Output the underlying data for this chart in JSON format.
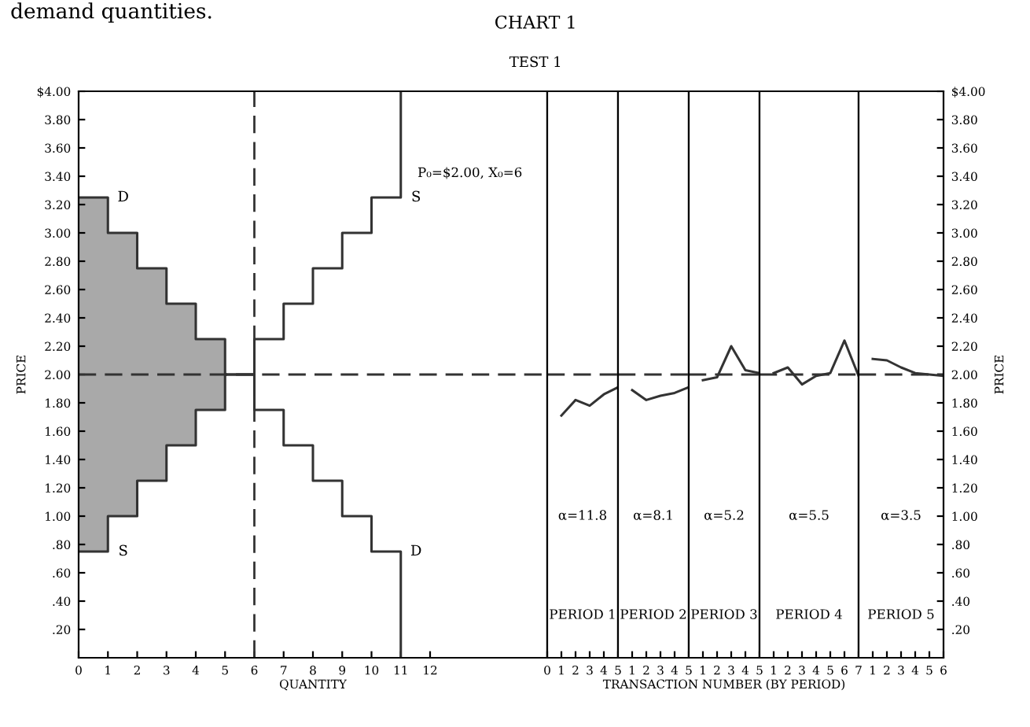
{
  "chart_data": [
    {
      "type": "step",
      "title": "CHART 1",
      "subtitle": "TEST 1",
      "xlabel": "QUANTITY",
      "ylabel": "PRICE",
      "xlim": [
        0,
        16
      ],
      "ylim": [
        0,
        4.0
      ],
      "xticks": [
        0,
        1,
        2,
        3,
        4,
        5,
        6,
        7,
        8,
        9,
        10,
        11,
        12
      ],
      "yticks": [
        {
          "value": 4.0,
          "label": "$4.00"
        },
        {
          "value": 3.8,
          "label": "3.80"
        },
        {
          "value": 3.6,
          "label": "3.60"
        },
        {
          "value": 3.4,
          "label": "3.40"
        },
        {
          "value": 3.2,
          "label": "3.20"
        },
        {
          "value": 3.0,
          "label": "3.00"
        },
        {
          "value": 2.8,
          "label": "2.80"
        },
        {
          "value": 2.6,
          "label": "2.60"
        },
        {
          "value": 2.4,
          "label": "2.40"
        },
        {
          "value": 2.2,
          "label": "2.20"
        },
        {
          "value": 2.0,
          "label": "2.00"
        },
        {
          "value": 1.8,
          "label": "1.80"
        },
        {
          "value": 1.6,
          "label": "1.60"
        },
        {
          "value": 1.4,
          "label": "1.40"
        },
        {
          "value": 1.2,
          "label": "1.20"
        },
        {
          "value": 1.0,
          "label": "1.00"
        },
        {
          "value": 0.8,
          "label": ".80"
        },
        {
          "value": 0.6,
          "label": ".60"
        },
        {
          "value": 0.4,
          "label": ".40"
        },
        {
          "value": 0.2,
          "label": ".20"
        }
      ],
      "series": [
        {
          "type": "step",
          "name": "D",
          "color": "#333333",
          "x": [
            0,
            1,
            2,
            3,
            4,
            5,
            6,
            7,
            8,
            9,
            10,
            11,
            11
          ],
          "values": [
            3.25,
            3.0,
            2.75,
            2.5,
            2.25,
            2.0,
            1.75,
            1.5,
            1.25,
            1.0,
            0.75,
            0.75,
            0
          ],
          "upper": [
            3.25,
            3.0,
            2.75,
            2.5,
            2.25,
            2.0,
            null,
            null,
            null,
            null,
            null,
            null,
            null
          ],
          "lower": [
            0.75,
            1.0,
            1.25,
            1.5,
            1.75,
            2.0,
            null,
            null,
            null,
            null,
            null,
            null,
            null
          ]
        },
        {
          "type": "step",
          "name": "S",
          "color": "#333333",
          "x": [
            0,
            1,
            2,
            3,
            4,
            5,
            6,
            7,
            8,
            9,
            10,
            11,
            11
          ],
          "values": [
            0.75,
            1.0,
            1.25,
            1.5,
            1.75,
            2.0,
            2.25,
            2.5,
            2.75,
            3.0,
            3.25,
            3.25,
            4.0
          ]
        }
      ],
      "ref_lines": [
        {
          "axis": "y",
          "value": 2.0,
          "line_style": "dashed",
          "color": "#333333"
        },
        {
          "axis": "x",
          "value": 6,
          "line_style": "dashed",
          "color": "#333333"
        }
      ],
      "annotations": [
        "demand quantities.",
        "P₀=$2.00, X₀=6"
      ],
      "grid": false,
      "marker": "none",
      "line_style": "solid"
    },
    {
      "type": "line",
      "xlim": [
        0,
        5
      ],
      "ylim": [
        0,
        4.0
      ],
      "xticks": [
        0,
        1,
        2,
        3,
        4,
        5
      ],
      "series": [
        {
          "color": "#333333",
          "x": [
            1,
            2,
            3,
            4,
            5
          ],
          "values": [
            1.71,
            1.82,
            1.78,
            1.86,
            1.91
          ]
        }
      ],
      "ref_lines": [
        {
          "axis": "y",
          "value": 2.0,
          "line_style": "dashed",
          "color": "#333333"
        }
      ],
      "annotations": [
        "α=11.8",
        "PERIOD 1"
      ],
      "tick_labels": "x",
      "grid": false,
      "marker": "none",
      "line_style": "solid"
    },
    {
      "type": "line",
      "xlim": [
        0,
        5
      ],
      "ylim": [
        0,
        4.0
      ],
      "xticks": [
        1,
        2,
        3,
        4,
        5
      ],
      "series": [
        {
          "color": "#333333",
          "x": [
            1,
            2,
            3,
            4,
            5
          ],
          "values": [
            1.89,
            1.82,
            1.85,
            1.87,
            1.91
          ]
        }
      ],
      "ref_lines": [
        {
          "axis": "y",
          "value": 2.0,
          "line_style": "dashed",
          "color": "#333333"
        }
      ],
      "annotations": [
        "α=8.1",
        "PERIOD 2"
      ],
      "tick_labels": "x",
      "grid": false,
      "marker": "none",
      "line_style": "solid"
    },
    {
      "type": "line",
      "xlabel": "TRANSACTION NUMBER (BY PERIOD)",
      "xlim": [
        0,
        5
      ],
      "ylim": [
        0,
        4.0
      ],
      "xticks": [
        1,
        2,
        3,
        4,
        5
      ],
      "series": [
        {
          "color": "#333333",
          "x": [
            1,
            2,
            3,
            4,
            5
          ],
          "values": [
            1.96,
            1.98,
            2.2,
            2.03,
            2.01
          ]
        }
      ],
      "ref_lines": [
        {
          "axis": "y",
          "value": 2.0,
          "line_style": "dashed",
          "color": "#333333"
        }
      ],
      "annotations": [
        "α=5.2",
        "PERIOD 3"
      ],
      "tick_labels": "x",
      "grid": false,
      "marker": "none",
      "line_style": "solid"
    },
    {
      "type": "line",
      "xlim": [
        0,
        7
      ],
      "ylim": [
        0,
        4.0
      ],
      "xticks": [
        1,
        2,
        3,
        4,
        5,
        6,
        7
      ],
      "series": [
        {
          "color": "#333333",
          "x": [
            1,
            2,
            3,
            4,
            5,
            6,
            7
          ],
          "values": [
            2.01,
            2.05,
            1.93,
            1.99,
            2.01,
            2.24,
            1.99
          ]
        }
      ],
      "ref_lines": [
        {
          "axis": "y",
          "value": 2.0,
          "line_style": "dashed",
          "color": "#333333"
        }
      ],
      "annotations": [
        "α=5.5",
        "PERIOD 4"
      ],
      "tick_labels": "x",
      "grid": false,
      "marker": "none",
      "line_style": "solid"
    },
    {
      "type": "line",
      "ylabel": "PRICE",
      "xlim": [
        0,
        6
      ],
      "ylim": [
        0,
        4.0
      ],
      "xticks": [
        1,
        2,
        3,
        4,
        5,
        6
      ],
      "yticks": [
        {
          "value": 4.0,
          "label": "$4.00"
        },
        {
          "value": 3.8,
          "label": "3.80"
        },
        {
          "value": 3.6,
          "label": "3.60"
        },
        {
          "value": 3.4,
          "label": "3.40"
        },
        {
          "value": 3.2,
          "label": "3.20"
        },
        {
          "value": 3.0,
          "label": "3.00"
        },
        {
          "value": 2.8,
          "label": "2.80"
        },
        {
          "value": 2.6,
          "label": "2.60"
        },
        {
          "value": 2.4,
          "label": "2.40"
        },
        {
          "value": 2.2,
          "label": "2.20"
        },
        {
          "value": 2.0,
          "label": "2.00"
        },
        {
          "value": 1.8,
          "label": "1.80"
        },
        {
          "value": 1.6,
          "label": "1.60"
        },
        {
          "value": 1.4,
          "label": "1.40"
        },
        {
          "value": 1.2,
          "label": "1.20"
        },
        {
          "value": 1.0,
          "label": "1.00"
        },
        {
          "value": 0.8,
          "label": ".80"
        },
        {
          "value": 0.6,
          "label": ".60"
        },
        {
          "value": 0.4,
          "label": ".40"
        },
        {
          "value": 0.2,
          "label": ".20"
        }
      ],
      "series": [
        {
          "color": "#333333",
          "x": [
            1,
            2,
            3,
            4,
            5,
            6
          ],
          "values": [
            2.11,
            2.1,
            2.05,
            2.01,
            2.0,
            1.99
          ]
        }
      ],
      "ref_lines": [
        {
          "axis": "y",
          "value": 2.0,
          "line_style": "dashed",
          "color": "#333333"
        }
      ],
      "annotations": [
        "α=3.5",
        "PERIOD 5"
      ],
      "grid": false,
      "marker": "none",
      "line_style": "solid"
    }
  ]
}
